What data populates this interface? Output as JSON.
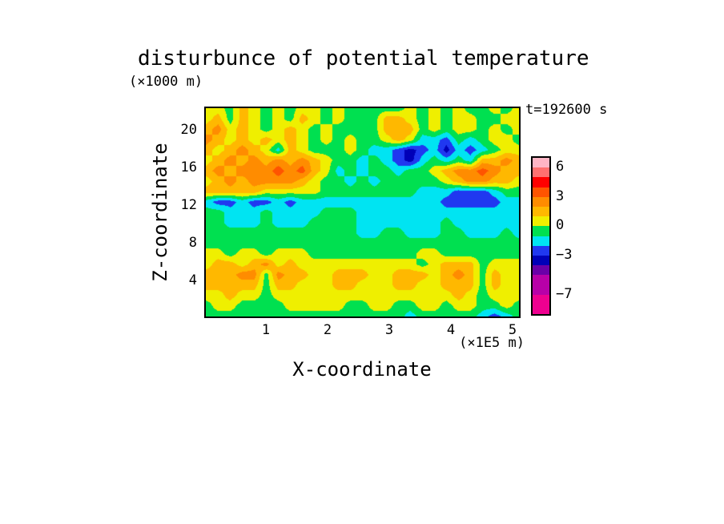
{
  "title": "disturbunce of potential temperature",
  "z_axis_unit": "(×1000 m)",
  "time_label": "t=192600 s",
  "y_axis": {
    "label": "Z-coordinate",
    "ticks": [
      20,
      16,
      12,
      8,
      4
    ]
  },
  "x_axis": {
    "label": "X-coordinate",
    "unit": "(×1E5 m)",
    "ticks": [
      1,
      2,
      3,
      4,
      5
    ]
  },
  "colorbar": {
    "colors": [
      "#FFB5C5",
      "#FF7070",
      "#FF0000",
      "#FF5400",
      "#FF8C00",
      "#FFB800",
      "#EFEF00",
      "#00E050",
      "#00E4F2",
      "#2038F0",
      "#0000B8",
      "#6A00A8",
      "#B800A8",
      "#EE0090"
    ],
    "segment_units": [
      1,
      1,
      1,
      1,
      1,
      1,
      1,
      1,
      1,
      1,
      1,
      1,
      2,
      2
    ],
    "labels": [
      {
        "text": "6",
        "units": 1
      },
      {
        "text": "3",
        "units": 4
      },
      {
        "text": "0",
        "units": 7
      },
      {
        "text": "−3",
        "units": 10
      },
      {
        "text": "−7",
        "units": 14
      }
    ]
  },
  "chart_data": {
    "type": "heatmap",
    "subtype": "filled_contour",
    "title": "disturbunce of potential temperature",
    "xlabel": "X-coordinate",
    "x_unit": "×1E5 m",
    "ylabel": "Z-coordinate",
    "y_unit": "×1000 m",
    "time": "t=192600 s",
    "x_ticks": [
      1,
      2,
      3,
      4,
      5
    ],
    "z_ticks": [
      20,
      16,
      12,
      8,
      4
    ],
    "x_range": [
      0,
      5.13
    ],
    "z_range_top_to_bottom": [
      22.5,
      0
    ],
    "levels": {
      "boundaries": [
        7,
        6,
        5,
        4,
        3,
        2,
        1,
        0,
        -1,
        -2,
        -3,
        -4,
        -5,
        -7,
        -9
      ],
      "colors": [
        "#FFB5C5",
        "#FF7070",
        "#FF0000",
        "#FF5400",
        "#FF8C00",
        "#FFB800",
        "#EFEF00",
        "#00E050",
        "#00E4F2",
        "#2038F0",
        "#0000B8",
        "#6A00A8",
        "#B800A8",
        "#EE0090"
      ]
    },
    "grid": {
      "note": "approximate disturbance values (rows top z=22.5 to bottom z=0, cols x=0 to 5.2e5 m)",
      "values": [
        [
          0.5,
          0.5,
          -0.5,
          1.5,
          0.5,
          -0.5,
          0.5,
          -0.5,
          0.5,
          0.5,
          -0.5,
          0.5,
          -0.5,
          -0.5,
          -0.5,
          -0.5,
          -0.5,
          0.5,
          -0.5,
          0.5,
          -0.5,
          0.5,
          -0.5,
          -0.5,
          0.5,
          -0.5,
          0.5
        ],
        [
          0.5,
          1.5,
          -0.5,
          1.5,
          0.5,
          -0.5,
          0.5,
          -0.5,
          1.5,
          0.5,
          -0.5,
          0.5,
          -0.5,
          -0.5,
          -0.5,
          1.5,
          1.5,
          0.5,
          -0.5,
          0.5,
          -0.5,
          0.5,
          0.5,
          -0.5,
          -0.5,
          0.5,
          0.5
        ],
        [
          1.5,
          2.5,
          0.5,
          1.5,
          0.5,
          -0.5,
          0.5,
          1.5,
          0.5,
          -0.5,
          0.5,
          -0.5,
          -0.5,
          -0.5,
          -0.5,
          1.5,
          1.5,
          1.5,
          -0.5,
          0.5,
          -0.5,
          0.5,
          0.5,
          -0.5,
          0.5,
          -0.5,
          0.5
        ],
        [
          2.5,
          1.5,
          0.5,
          1.5,
          0.5,
          1.5,
          0.5,
          1.5,
          0.5,
          -0.5,
          0.5,
          -0.5,
          0.5,
          -0.5,
          -0.5,
          0.5,
          1.5,
          0.5,
          -1.5,
          -1.5,
          -2.5,
          -0.5,
          -1.5,
          -0.5,
          0.5,
          0.5,
          -0.5
        ],
        [
          1.5,
          0.5,
          1.5,
          2.5,
          1.5,
          0.5,
          -1.5,
          1.5,
          0.5,
          -0.5,
          -0.5,
          -0.5,
          0.5,
          -0.5,
          -1.5,
          -1.5,
          -2.5,
          -3.5,
          -2.5,
          -1.5,
          -3.5,
          -1.5,
          -2.5,
          -1.5,
          -0.5,
          0.5,
          0.5
        ],
        [
          0.5,
          1.5,
          2.5,
          1.5,
          2.5,
          1.5,
          2.5,
          1.5,
          2.5,
          1.5,
          0.5,
          -0.5,
          -0.5,
          -1.5,
          -0.5,
          -1.5,
          -2.5,
          -3.5,
          -1.5,
          -0.5,
          -1.5,
          -0.5,
          -1.5,
          1.5,
          1.5,
          2.5,
          1.5
        ],
        [
          1.5,
          2.5,
          1.5,
          2.5,
          2.5,
          2.5,
          3.5,
          2.5,
          3.5,
          1.5,
          0.5,
          -1.5,
          -0.5,
          -1.5,
          -0.5,
          -0.5,
          -1.5,
          -0.5,
          -0.5,
          0.5,
          1.5,
          2.5,
          2.5,
          3.5,
          2.5,
          1.5,
          1.5
        ],
        [
          0.5,
          1.5,
          2.5,
          1.5,
          2.5,
          2.5,
          2.5,
          2.5,
          1.5,
          0.5,
          -0.5,
          -0.5,
          -1.5,
          -0.5,
          -1.5,
          -0.5,
          -0.5,
          -0.5,
          -0.5,
          -0.5,
          0.5,
          1.5,
          2.5,
          2.5,
          1.5,
          1.5,
          0.5
        ],
        [
          1.5,
          1.5,
          1.5,
          1.5,
          1.5,
          0.5,
          0.5,
          0.5,
          0.5,
          0.5,
          -0.5,
          -0.5,
          -0.5,
          -0.5,
          -0.5,
          -0.5,
          -0.5,
          -0.5,
          -1.5,
          -1.5,
          -1.5,
          -2.5,
          -2.5,
          -2.5,
          -1.5,
          -0.5,
          -0.5
        ],
        [
          -1.5,
          -2.5,
          -2.5,
          -1.5,
          -2.5,
          -2.5,
          -1.5,
          -2.5,
          -1.5,
          -1.5,
          -1.5,
          -1.5,
          -1.5,
          -1.5,
          -1.5,
          -1.5,
          -1.5,
          -1.5,
          -1.5,
          -1.5,
          -2.5,
          -2.5,
          -2.5,
          -2.5,
          -2.5,
          -1.5,
          -1.5
        ],
        [
          -0.5,
          -0.5,
          -1.5,
          -1.5,
          -1.5,
          -0.5,
          -1.5,
          -1.5,
          -1.5,
          -1.5,
          -0.5,
          -0.5,
          -0.5,
          -1.5,
          -1.5,
          -1.5,
          -1.5,
          -1.5,
          -1.5,
          -1.5,
          -1.5,
          -1.5,
          -1.5,
          -1.5,
          -1.5,
          -1.5,
          -1.5
        ],
        [
          -0.5,
          -0.5,
          -1.5,
          -1.5,
          -1.5,
          -0.5,
          -1.5,
          -1.5,
          -1.5,
          -0.5,
          -0.5,
          -0.5,
          -0.5,
          -1.5,
          -1.5,
          -1.5,
          -1.5,
          -1.5,
          -1.5,
          -1.5,
          -0.5,
          -1.5,
          -1.5,
          -1.5,
          -1.5,
          -1.5,
          -1.5
        ],
        [
          -0.5,
          -0.5,
          -0.5,
          -0.5,
          -0.5,
          -0.5,
          -0.5,
          -0.5,
          -0.5,
          -0.5,
          -0.5,
          -0.5,
          -0.5,
          -1.5,
          -1.5,
          -0.5,
          -0.5,
          -1.5,
          -1.5,
          -1.5,
          -0.5,
          -0.5,
          -1.5,
          -1.5,
          -1.5,
          -0.5,
          -1.5
        ],
        [
          -0.5,
          -0.5,
          -0.5,
          -0.5,
          -0.5,
          -0.5,
          -0.5,
          -0.5,
          -0.5,
          -0.5,
          -0.5,
          -0.5,
          -0.5,
          -0.5,
          -0.5,
          -0.5,
          -0.5,
          -0.5,
          -0.5,
          -0.5,
          -0.5,
          -0.5,
          -0.5,
          -0.5,
          -0.5,
          -0.5,
          -0.5
        ],
        [
          0.5,
          0.5,
          -0.5,
          0.5,
          0.5,
          -0.5,
          0.5,
          0.5,
          0.5,
          -0.5,
          -0.5,
          -0.5,
          -0.5,
          -0.5,
          -0.5,
          -0.5,
          -0.5,
          -0.5,
          0.5,
          0.5,
          -0.5,
          -0.5,
          -0.5,
          -0.5,
          -0.5,
          -0.5,
          -0.5
        ],
        [
          0.5,
          1.5,
          1.5,
          0.5,
          1.5,
          2.5,
          0.5,
          1.5,
          0.5,
          0.5,
          0.5,
          0.5,
          0.5,
          0.5,
          0.5,
          0.5,
          0.5,
          0.5,
          -0.5,
          0.5,
          1.5,
          1.5,
          1.5,
          -0.5,
          0.5,
          0.5,
          0.5
        ],
        [
          1.5,
          1.5,
          1.5,
          2.5,
          2.5,
          -0.5,
          2.5,
          1.5,
          1.5,
          0.5,
          0.5,
          1.5,
          1.5,
          1.5,
          0.5,
          0.5,
          1.5,
          1.5,
          1.5,
          0.5,
          1.5,
          2.5,
          1.5,
          -0.5,
          1.5,
          0.5,
          0.5
        ],
        [
          1.5,
          1.5,
          1.5,
          1.5,
          1.5,
          -0.5,
          1.5,
          1.5,
          0.5,
          0.5,
          0.5,
          1.5,
          1.5,
          0.5,
          0.5,
          0.5,
          1.5,
          1.5,
          0.5,
          0.5,
          1.5,
          1.5,
          1.5,
          -0.5,
          1.5,
          0.5,
          0.5
        ],
        [
          0.5,
          0.5,
          1.5,
          0.5,
          0.5,
          -0.5,
          0.5,
          0.5,
          0.5,
          0.5,
          0.5,
          0.5,
          0.5,
          0.5,
          0.5,
          0.5,
          0.5,
          0.5,
          0.5,
          0.5,
          0.5,
          1.5,
          0.5,
          -0.5,
          0.5,
          0.5,
          0.5
        ],
        [
          -0.5,
          0.5,
          0.5,
          -0.5,
          -0.5,
          -0.5,
          -0.5,
          0.5,
          0.5,
          0.5,
          0.5,
          0.5,
          -0.5,
          -0.5,
          0.5,
          0.5,
          -0.5,
          -0.5,
          0.5,
          0.5,
          -0.5,
          0.5,
          0.5,
          -0.5,
          -0.5,
          0.5,
          -0.5
        ],
        [
          -0.5,
          -0.5,
          -0.5,
          -0.5,
          -0.5,
          -0.5,
          -0.5,
          -0.5,
          -0.5,
          -0.5,
          -0.5,
          -0.5,
          -0.5,
          -0.5,
          -0.5,
          -0.5,
          -0.5,
          -1.5,
          -0.5,
          -0.5,
          -0.5,
          -0.5,
          -0.5,
          -1.5,
          -2.5,
          -1.5,
          -0.5
        ]
      ]
    },
    "legend_position": "right"
  }
}
